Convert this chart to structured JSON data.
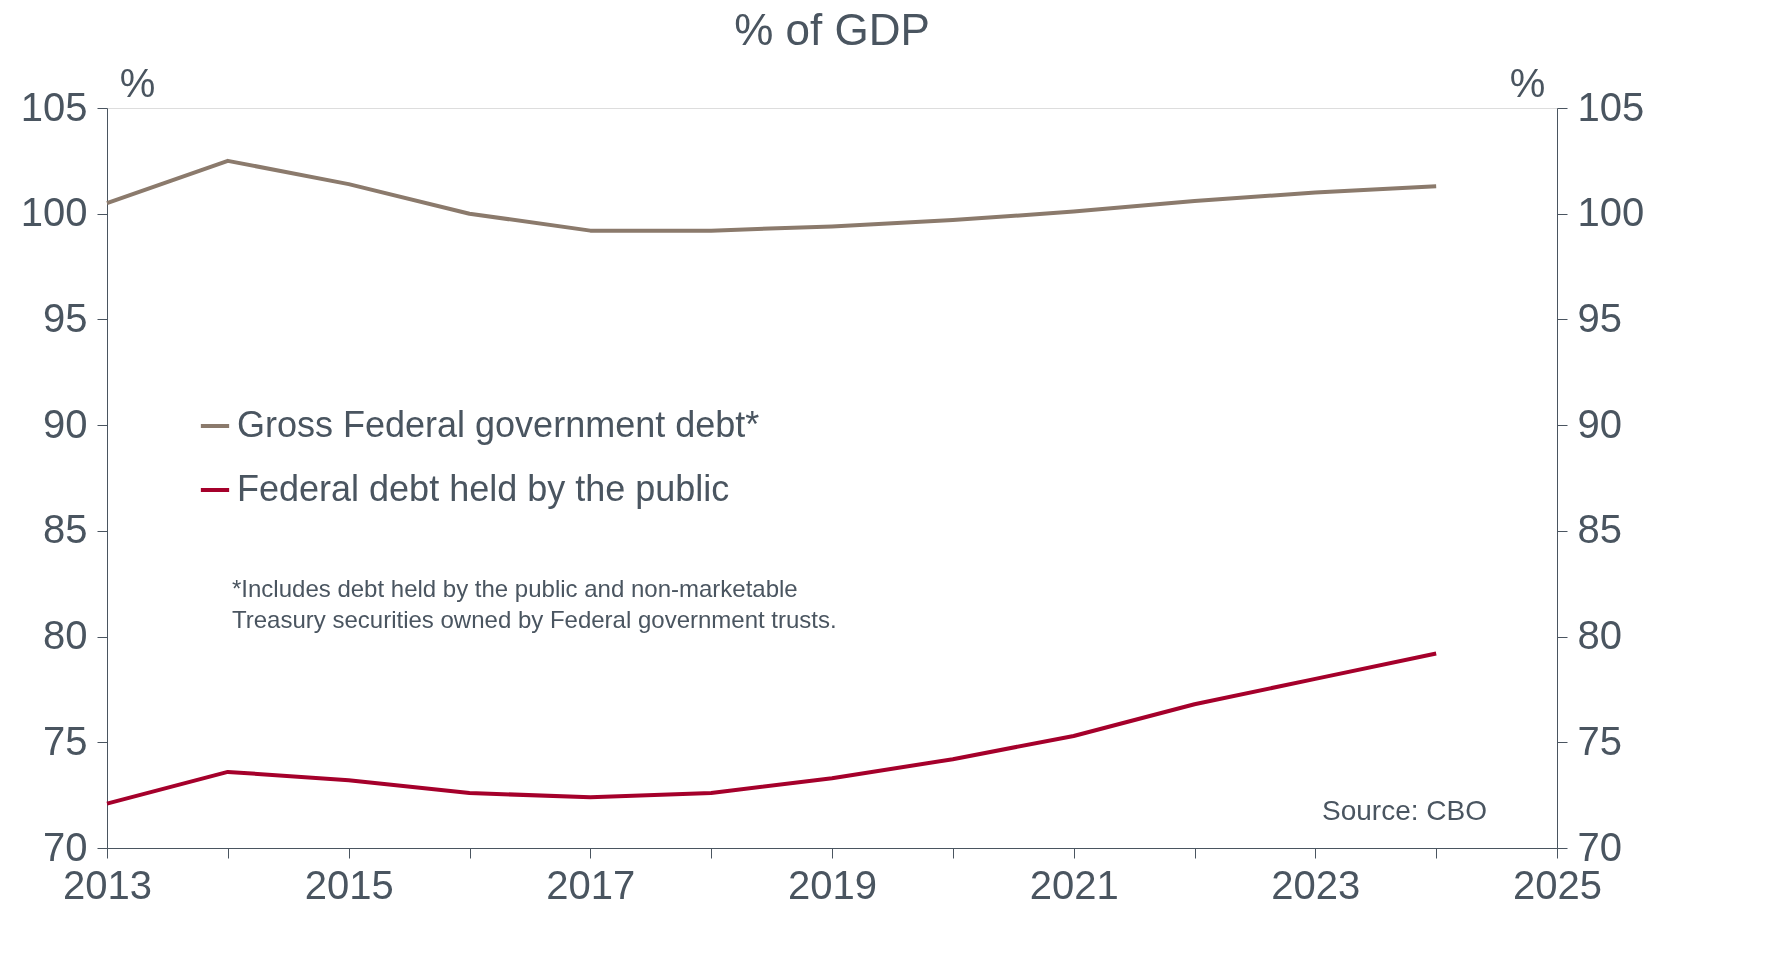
{
  "chart_data": {
    "type": "line",
    "title": "% of GDP",
    "ylabel": "%",
    "y2label": "%",
    "x": [
      2013,
      2014,
      2015,
      2016,
      2017,
      2018,
      2019,
      2020,
      2021,
      2022,
      2023,
      2024
    ],
    "series": [
      {
        "name": "Gross Federal government debt*",
        "color": "#8b7a6c",
        "values": [
          100.5,
          102.5,
          101.4,
          100.0,
          99.2,
          99.2,
          99.4,
          99.7,
          100.1,
          100.6,
          101.0,
          101.3
        ]
      },
      {
        "name": "Federal debt held by the public",
        "color": "#a5002b",
        "values": [
          72.1,
          73.6,
          73.2,
          72.6,
          72.4,
          72.6,
          73.3,
          74.2,
          75.3,
          76.8,
          78.0,
          79.2
        ]
      }
    ],
    "xlim": [
      2013,
      2025
    ],
    "xticks": [
      2013,
      {
        "value": 2014,
        "label": null
      },
      2015,
      {
        "value": 2016,
        "label": null
      },
      2017,
      {
        "value": 2018,
        "label": null
      },
      2019,
      {
        "value": 2020,
        "label": null
      },
      2021,
      {
        "value": 2022,
        "label": null
      },
      2023,
      {
        "value": 2024,
        "label": null
      },
      2025
    ],
    "ylim": [
      70,
      105
    ],
    "yticks": [
      70,
      75,
      80,
      85,
      90,
      95,
      100,
      105
    ],
    "y2lim": [
      70,
      105
    ],
    "y2ticks": [
      70,
      75,
      80,
      85,
      90,
      95,
      100,
      105
    ],
    "annotations": [
      "*Includes debt held by the public and non-marketable\n Treasury securities owned by Federal government trusts.",
      "Source: CBO"
    ],
    "legend": "left",
    "grid": false,
    "marker": "none",
    "line_style": "solid"
  }
}
